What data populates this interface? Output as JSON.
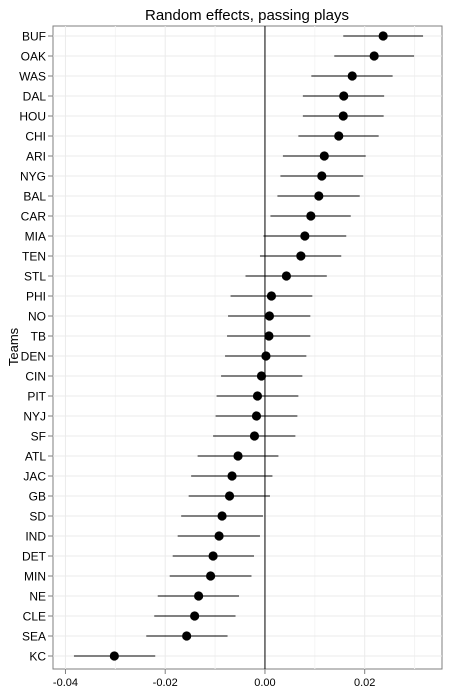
{
  "chart_data": {
    "type": "scatter",
    "title": "Random effects, passing plays",
    "xlabel": "",
    "ylabel": "Teams",
    "xlim": [
      -0.0425,
      0.0355
    ],
    "x_ticks": [
      -0.04,
      -0.02,
      0.0,
      0.02
    ],
    "x_tick_labels": [
      "-0.04",
      "-0.02",
      "0.00",
      "0.02"
    ],
    "grid": true,
    "reference_line_x": 0,
    "point_color": "#000000",
    "grid_color": "#ebebeb",
    "categories": [
      "BUF",
      "OAK",
      "WAS",
      "DAL",
      "HOU",
      "CHI",
      "ARI",
      "NYG",
      "BAL",
      "CAR",
      "MIA",
      "TEN",
      "STL",
      "PHI",
      "NO",
      "TB",
      "DEN",
      "CIN",
      "PIT",
      "NYJ",
      "SF",
      "ATL",
      "JAC",
      "GB",
      "SD",
      "IND",
      "DET",
      "MIN",
      "NE",
      "CLE",
      "SEA",
      "KC"
    ],
    "estimates": [
      0.0237,
      0.0219,
      0.0175,
      0.0158,
      0.0157,
      0.0148,
      0.0119,
      0.0114,
      0.0108,
      0.0092,
      0.008,
      0.0072,
      0.0043,
      0.0013,
      0.0009,
      0.0008,
      0.0002,
      -0.0007,
      -0.0015,
      -0.0017,
      -0.0021,
      -0.0054,
      -0.0066,
      -0.0071,
      -0.0086,
      -0.0092,
      -0.0104,
      -0.0109,
      -0.0133,
      -0.0141,
      -0.0157,
      -0.0302
    ],
    "lower": [
      0.0157,
      0.0139,
      0.0093,
      0.0076,
      0.0076,
      0.0067,
      0.0036,
      0.0031,
      0.0025,
      0.0011,
      -0.0003,
      -0.001,
      -0.0039,
      -0.0069,
      -0.0074,
      -0.0076,
      -0.008,
      -0.0088,
      -0.0097,
      -0.0099,
      -0.0104,
      -0.0135,
      -0.0148,
      -0.0153,
      -0.0168,
      -0.0175,
      -0.0185,
      -0.0191,
      -0.0215,
      -0.0222,
      -0.0238,
      -0.0383
    ],
    "upper": [
      0.0317,
      0.0299,
      0.0256,
      0.0239,
      0.0238,
      0.0228,
      0.0202,
      0.0197,
      0.019,
      0.0172,
      0.0163,
      0.0153,
      0.0124,
      0.0095,
      0.0091,
      0.0091,
      0.0083,
      0.0075,
      0.0067,
      0.0065,
      0.0061,
      0.0027,
      0.0015,
      0.001,
      -0.0004,
      -0.001,
      -0.0022,
      -0.0027,
      -0.0052,
      -0.0059,
      -0.0075,
      -0.022
    ]
  }
}
